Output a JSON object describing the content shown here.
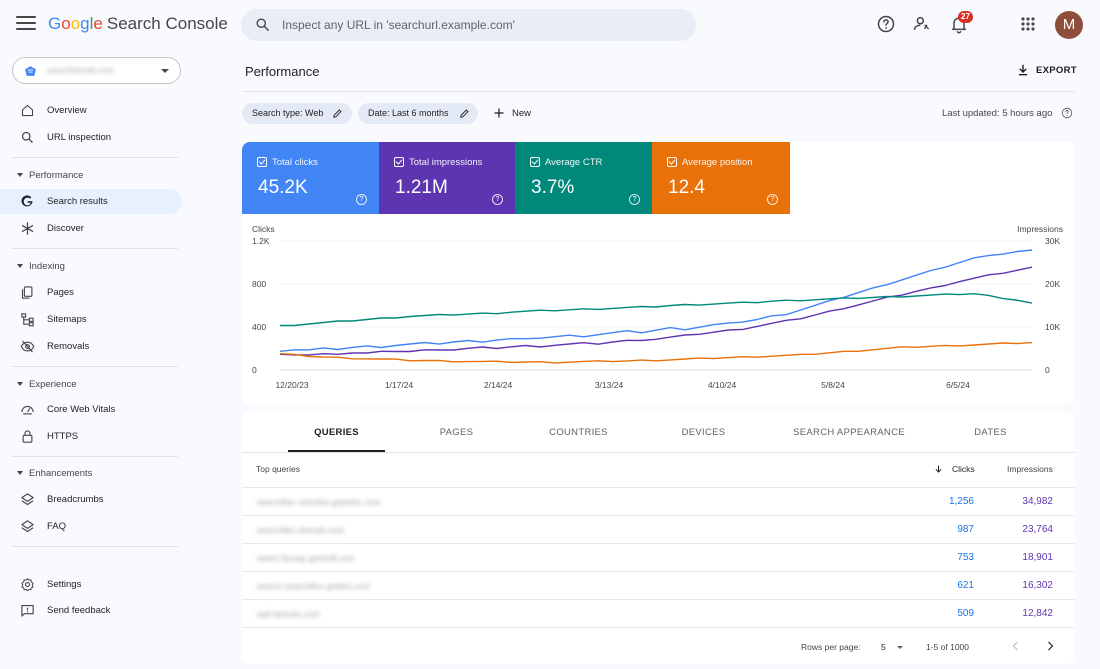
{
  "app": {
    "logo_word": "Google",
    "logo_suffix": "Search Console",
    "search_placeholder": "Inspect any URL in 'searchurl.example.com'",
    "notification_count": "27",
    "avatar_initial": "M",
    "property_name": "searchdomain.com"
  },
  "sidebar": {
    "top_items": [
      {
        "label": "Overview",
        "icon": "home-icon"
      },
      {
        "label": "URL inspection",
        "icon": "search-icon"
      }
    ],
    "sections": [
      {
        "label": "Performance",
        "items": [
          {
            "label": "Search results",
            "icon": "google-g-icon",
            "active": true
          },
          {
            "label": "Discover",
            "icon": "discover-asterisk-icon"
          }
        ]
      },
      {
        "label": "Indexing",
        "items": [
          {
            "label": "Pages",
            "icon": "pages-icon"
          },
          {
            "label": "Sitemaps",
            "icon": "sitemap-icon"
          },
          {
            "label": "Removals",
            "icon": "removals-icon"
          }
        ]
      },
      {
        "label": "Experience",
        "items": [
          {
            "label": "Core Web Vitals",
            "icon": "gauge-icon"
          },
          {
            "label": "HTTPS",
            "icon": "lock-icon"
          }
        ]
      },
      {
        "label": "Enhancements",
        "items": [
          {
            "label": "Breadcrumbs",
            "icon": "layers-icon"
          },
          {
            "label": "FAQ",
            "icon": "layers-icon"
          }
        ]
      }
    ],
    "bottom_items": [
      {
        "label": "Settings",
        "icon": "gear-icon"
      },
      {
        "label": "Send feedback",
        "icon": "feedback-icon"
      }
    ]
  },
  "main": {
    "title": "Performance",
    "export_label": "EXPORT",
    "filters": [
      {
        "label": "Search type: Web"
      },
      {
        "label": "Date: Last 6 months"
      }
    ],
    "new_label": "New",
    "last_updated": "Last updated: 5 hours ago"
  },
  "metrics": [
    {
      "label": "Total clicks",
      "value": "45.2K",
      "color": "#4285f4"
    },
    {
      "label": "Total impressions",
      "value": "1.21M",
      "color": "#5e35b1"
    },
    {
      "label": "Average CTR",
      "value": "3.7%",
      "color": "#00897b"
    },
    {
      "label": "Average position",
      "value": "12.4",
      "color": "#e8710a"
    }
  ],
  "chart_data": {
    "type": "line",
    "x_ticks": [
      "12/20/23",
      "1/17/24",
      "2/14/24",
      "3/13/24",
      "4/10/24",
      "5/8/24",
      "6/5/24"
    ],
    "x_start": "12/20/23",
    "y_left": {
      "label": "Clicks",
      "ticks": [
        "1.2K",
        "800",
        "400",
        "0"
      ],
      "range": [
        0,
        1200
      ]
    },
    "y_right": {
      "label": "Impressions",
      "ticks": [
        "30K",
        "20K",
        "10K",
        "0"
      ],
      "range": [
        0,
        30000
      ]
    },
    "grid": true,
    "legend": "none",
    "series": [
      {
        "color": "#4285f4",
        "axis": "left",
        "values": [
          180,
          190,
          185,
          200,
          195,
          210,
          220,
          215,
          230,
          240,
          250,
          245,
          260,
          270,
          265,
          280,
          290,
          285,
          300,
          310,
          320,
          315,
          330,
          345,
          360,
          350,
          370,
          390,
          380,
          400,
          420,
          430,
          450,
          470,
          500,
          520,
          560,
          600,
          640,
          680,
          720,
          760,
          800,
          840,
          880,
          920,
          960,
          1000,
          1040,
          1070,
          1080,
          1100,
          1110
        ]
      },
      {
        "color": "#5e35b1",
        "axis": "right",
        "values": [
          3500,
          3600,
          3500,
          3700,
          3800,
          4000,
          3900,
          4200,
          4400,
          4300,
          4600,
          4800,
          4700,
          5000,
          5200,
          5100,
          5400,
          5600,
          5500,
          5800,
          6000,
          6200,
          6100,
          6500,
          6800,
          7000,
          7200,
          7600,
          8000,
          8400,
          8800,
          9200,
          9600,
          10200,
          10800,
          11400,
          12000,
          12800,
          13600,
          14400,
          15200,
          16000,
          16800,
          17500,
          18300,
          19000,
          19800,
          20600,
          21300,
          22000,
          22600,
          23200,
          23800
        ]
      },
      {
        "color": "#00897b",
        "axis": "left",
        "values": [
          410,
          420,
          430,
          440,
          450,
          460,
          470,
          480,
          490,
          500,
          505,
          510,
          515,
          520,
          525,
          530,
          540,
          545,
          550,
          555,
          560,
          565,
          570,
          575,
          580,
          585,
          590,
          600,
          605,
          610,
          615,
          620,
          625,
          630,
          640,
          645,
          650,
          655,
          660,
          665,
          670,
          675,
          680,
          685,
          690,
          695,
          700,
          705,
          710,
          690,
          670,
          650,
          620
        ]
      },
      {
        "color": "#e8710a",
        "axis": "left",
        "values": [
          150,
          140,
          130,
          120,
          115,
          110,
          105,
          100,
          95,
          90,
          88,
          85,
          82,
          80,
          78,
          76,
          75,
          74,
          73,
          72,
          75,
          78,
          80,
          82,
          85,
          88,
          92,
          96,
          100,
          105,
          110,
          115,
          120,
          125,
          130,
          135,
          140,
          150,
          160,
          170,
          180,
          190,
          200,
          210,
          215,
          220,
          225,
          230,
          235,
          240,
          245,
          250,
          255
        ]
      }
    ]
  },
  "table": {
    "tabs": [
      "QUERIES",
      "PAGES",
      "COUNTRIES",
      "DEVICES",
      "SEARCH APPEARANCE",
      "DATES"
    ],
    "active_tab": 0,
    "header": {
      "query": "Top queries",
      "clicks": "Clicks",
      "impressions": "Impressions"
    },
    "rows": [
      {
        "query": "searchflex oneview gatedoc.com",
        "clicks": "1,256",
        "impressions": "34,982"
      },
      {
        "query": "searchflex domain.com",
        "clicks": "987",
        "impressions": "23,764"
      },
      {
        "query": "select bizzap getstuff.com",
        "clicks": "753",
        "impressions": "18,901"
      },
      {
        "query": "search searchflex getdoc.com",
        "clicks": "621",
        "impressions": "16,302"
      },
      {
        "query": "add domain.com",
        "clicks": "509",
        "impressions": "12,842"
      }
    ],
    "pager": {
      "rows_label": "Rows per page:",
      "rows_value": "5",
      "range": "1-5 of 1000"
    }
  }
}
